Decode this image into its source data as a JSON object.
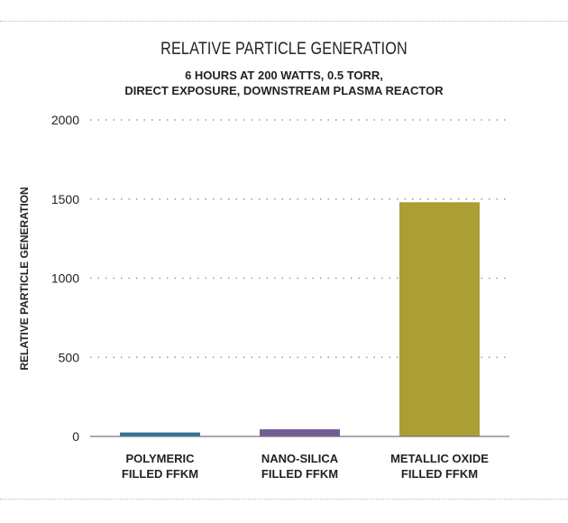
{
  "chart_data": {
    "type": "bar",
    "title": "RELATIVE PARTICLE GENERATION",
    "subtitle": [
      "6 HOURS AT 200 WATTS, 0.5 TORR,",
      "DIRECT EXPOSURE, DOWNSTREAM PLASMA REACTOR"
    ],
    "xlabel": "",
    "ylabel": "RELATIVE PARTICLE GENERATION",
    "categories": [
      [
        "POLYMERIC",
        "FILLED FFKM"
      ],
      [
        "NANO-SILICA",
        "FILLED FFKM"
      ],
      [
        "METALLIC OXIDE",
        "FILLED FFKM"
      ]
    ],
    "values": [
      25,
      45,
      1480
    ],
    "colors": [
      "#2f7597",
      "#725d94",
      "#aa9e35"
    ],
    "ylim": [
      0,
      2000
    ],
    "yticks": [
      0,
      500,
      1000,
      1500,
      2000
    ],
    "grid": true,
    "legend": "none"
  }
}
